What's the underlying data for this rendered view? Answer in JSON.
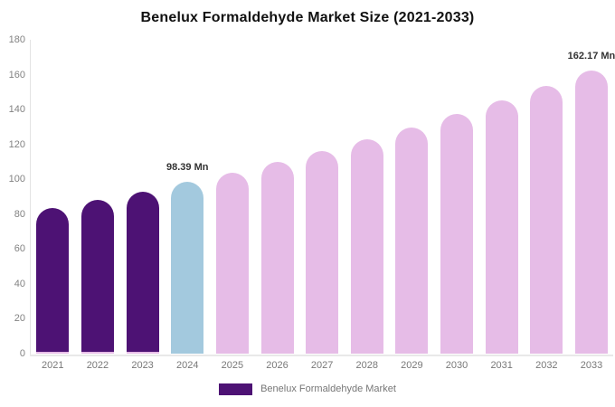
{
  "chart_data": {
    "type": "bar",
    "title": "Benelux Formaldehyde Market Size (2021-2033)",
    "categories": [
      "2021",
      "2022",
      "2023",
      "2024",
      "2025",
      "2026",
      "2027",
      "2028",
      "2029",
      "2030",
      "2031",
      "2032",
      "2033"
    ],
    "series": [
      {
        "name": "Benelux Formaldehyde Market",
        "values": [
          83.3,
          88.0,
          93.1,
          98.39,
          104.0,
          110.0,
          116.2,
          122.8,
          129.9,
          137.3,
          145.1,
          153.4,
          162.17
        ]
      }
    ],
    "bar_color_keys": [
      "historical",
      "historical",
      "historical",
      "current",
      "forecast",
      "forecast",
      "forecast",
      "forecast",
      "forecast",
      "forecast",
      "forecast",
      "forecast",
      "forecast"
    ],
    "colors": {
      "historical": "#4D1274",
      "current": "#A3C9DE",
      "forecast": "#E6BCE7",
      "historical_bottom_edge": "#E6BCE7",
      "axis_line": "#E3E3E3"
    },
    "value_labels": [
      {
        "category": "2024",
        "text": "98.39 Mn"
      },
      {
        "category": "2033",
        "text": "162.17 Mn"
      }
    ],
    "unit": "Mn",
    "xlabel": "",
    "ylabel": "",
    "ylim": [
      0,
      180
    ],
    "yticks": [
      0,
      20,
      40,
      60,
      80,
      100,
      120,
      140,
      160,
      180
    ],
    "grid": false,
    "legend": {
      "position": "bottom",
      "entries": [
        {
          "label": "Benelux Formaldehyde Market",
          "color_key": "historical"
        }
      ]
    }
  }
}
